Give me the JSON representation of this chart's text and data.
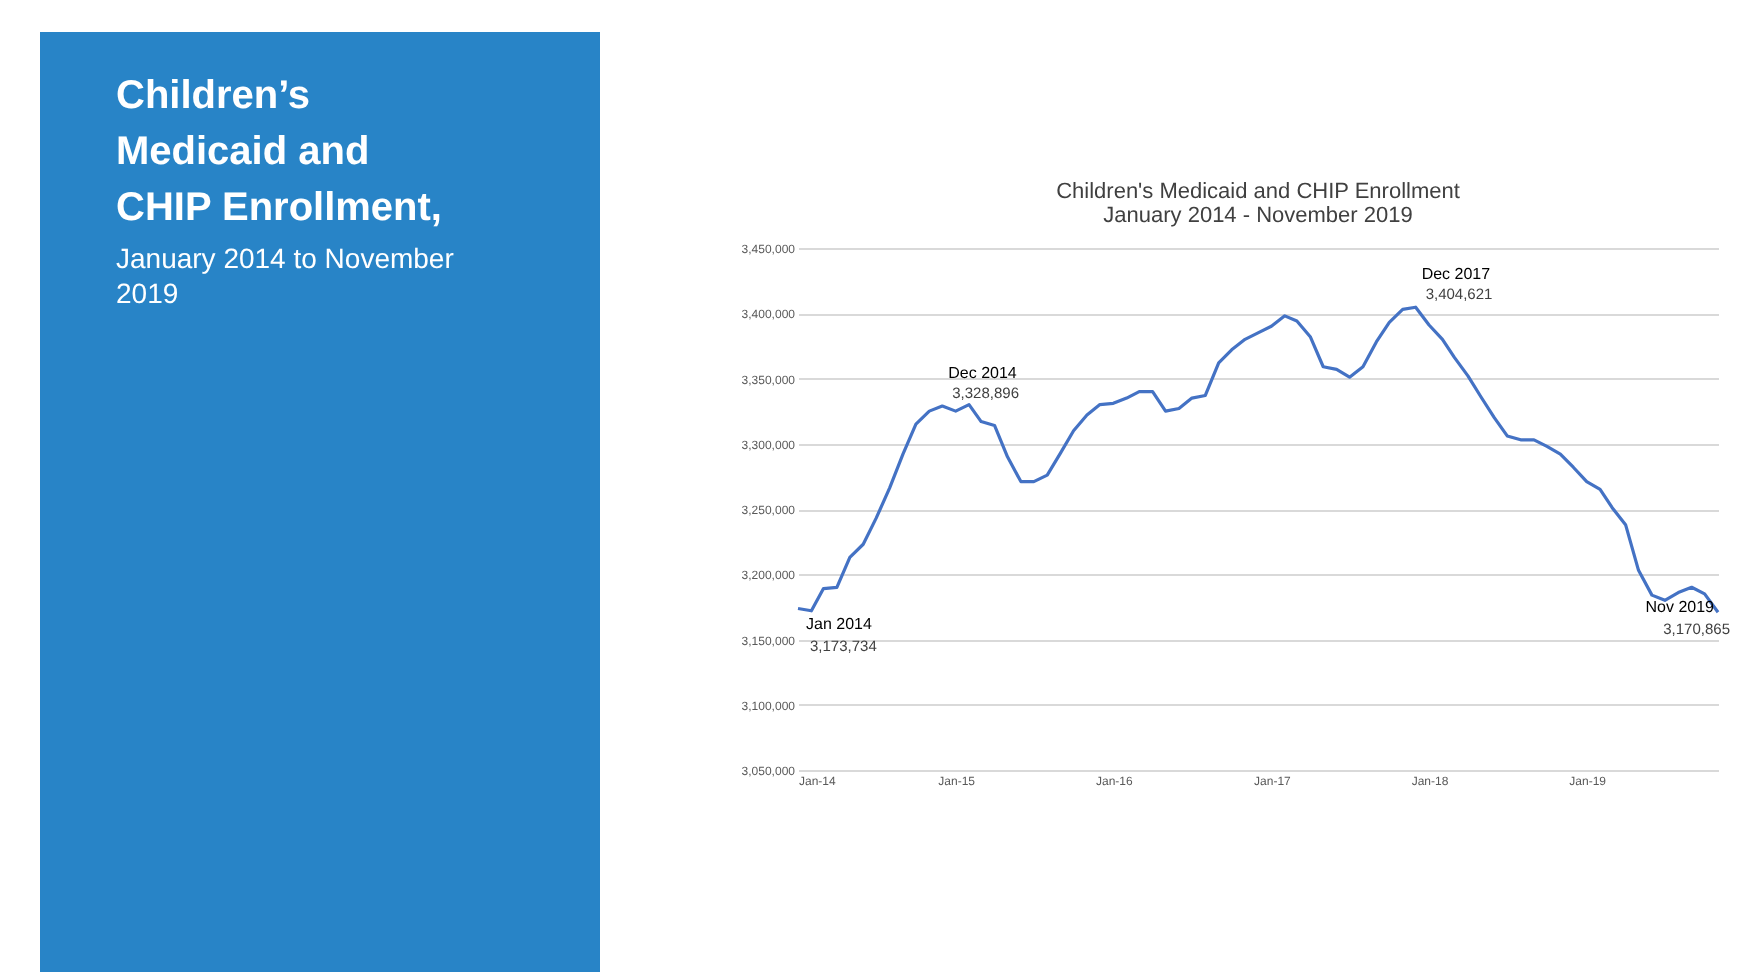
{
  "chart_data": {
    "type": "line",
    "title": "Children's Medicaid  and CHIP Enrollment",
    "subtitle": "January 2014 - November 2019",
    "x": [
      "2014-01",
      "2014-02",
      "2014-03",
      "2014-04",
      "2014-05",
      "2014-06",
      "2014-07",
      "2014-08",
      "2014-09",
      "2014-10",
      "2014-11",
      "2014-12",
      "2015-01",
      "2015-02",
      "2015-03",
      "2015-04",
      "2015-05",
      "2015-06",
      "2015-07",
      "2015-08",
      "2015-09",
      "2015-10",
      "2015-11",
      "2015-12",
      "2016-01",
      "2016-02",
      "2016-03",
      "2016-04",
      "2016-05",
      "2016-06",
      "2016-07",
      "2016-08",
      "2016-09",
      "2016-10",
      "2016-11",
      "2016-12",
      "2017-01",
      "2017-02",
      "2017-03",
      "2017-04",
      "2017-05",
      "2017-06",
      "2017-07",
      "2017-08",
      "2017-09",
      "2017-10",
      "2017-11",
      "2017-12",
      "2018-01",
      "2018-02",
      "2018-03",
      "2018-04",
      "2018-05",
      "2018-06",
      "2018-07",
      "2018-08",
      "2018-09",
      "2018-10",
      "2018-11",
      "2018-12",
      "2019-01",
      "2019-02",
      "2019-03",
      "2019-04",
      "2019-05",
      "2019-06",
      "2019-07",
      "2019-08",
      "2019-09",
      "2019-10",
      "2019-11"
    ],
    "series": [
      {
        "color": "#4472c4",
        "values": [
          3173734,
          3172000,
          3189000,
          3190000,
          3213000,
          3223000,
          3243000,
          3266000,
          3292000,
          3315000,
          3325000,
          3328896,
          3325000,
          3330000,
          3317000,
          3314000,
          3290000,
          3271000,
          3271000,
          3276000,
          3293000,
          3310000,
          3322000,
          3330000,
          3331000,
          3335000,
          3340000,
          3340000,
          3325000,
          3327000,
          3335000,
          3337000,
          3362000,
          3372000,
          3380000,
          3385000,
          3390000,
          3398000,
          3394000,
          3382000,
          3359000,
          3357000,
          3351000,
          3359000,
          3378000,
          3393000,
          3403000,
          3404621,
          3391000,
          3380000,
          3366000,
          3352000,
          3336000,
          3320000,
          3306000,
          3303000,
          3303000,
          3298000,
          3292000,
          3282000,
          3271000,
          3265000,
          3251000,
          3238000,
          3203000,
          3184000,
          3180000,
          3186000,
          3190000,
          3185000,
          3170865
        ],
        "value_labels": [
          "3,173,734",
          null,
          null,
          null,
          null,
          null,
          null,
          null,
          null,
          null,
          null,
          "3,328,896",
          null,
          null,
          null,
          null,
          null,
          null,
          null,
          null,
          null,
          null,
          null,
          null,
          null,
          null,
          null,
          null,
          null,
          null,
          null,
          null,
          null,
          null,
          null,
          null,
          null,
          null,
          null,
          null,
          null,
          null,
          null,
          null,
          null,
          null,
          null,
          "3,404,621",
          null,
          null,
          null,
          null,
          null,
          null,
          null,
          null,
          null,
          null,
          null,
          null,
          null,
          null,
          null,
          null,
          null,
          null,
          null,
          null,
          null,
          null,
          "3,170,865"
        ]
      }
    ],
    "xlim": [
      "2014-01",
      "2019-11"
    ],
    "xticks": [
      {
        "value": "2014-01",
        "label": "Jan-14"
      },
      {
        "value": "2015-01",
        "label": "Jan-15"
      },
      {
        "value": "2016-01",
        "label": "Jan-16"
      },
      {
        "value": "2017-01",
        "label": "Jan-17"
      },
      {
        "value": "2018-01",
        "label": "Jan-18"
      },
      {
        "value": "2019-01",
        "label": "Jan-19"
      }
    ],
    "ylim": [
      3050000,
      3450000
    ],
    "yticks": [
      {
        "value": 3050000,
        "label": "3,050,000"
      },
      {
        "value": 3100000,
        "label": "3,100,000"
      },
      {
        "value": 3150000,
        "label": "3,150,000"
      },
      {
        "value": 3200000,
        "label": "3,200,000"
      },
      {
        "value": 3250000,
        "label": "3,250,000"
      },
      {
        "value": 3300000,
        "label": "3,300,000"
      },
      {
        "value": 3350000,
        "label": "3,350,000"
      },
      {
        "value": 3400000,
        "label": "3,400,000"
      },
      {
        "value": 3450000,
        "label": "3,450,000"
      }
    ],
    "grid": "y",
    "marker": "none",
    "line_style": "solid",
    "annotations": [
      "Children’s Medicaid and CHIP Enrollment,",
      "January 2014 to November 2019",
      {
        "text": "Jan 2014",
        "x": "2014-01",
        "y": 3173734
      },
      {
        "text": "Dec 2014",
        "x": "2014-12",
        "y": 3328896
      },
      {
        "text": "Dec 2017",
        "x": "2017-12",
        "y": 3404621
      },
      {
        "text": "Nov 2019",
        "x": "2019-11",
        "y": 3170865
      }
    ]
  }
}
